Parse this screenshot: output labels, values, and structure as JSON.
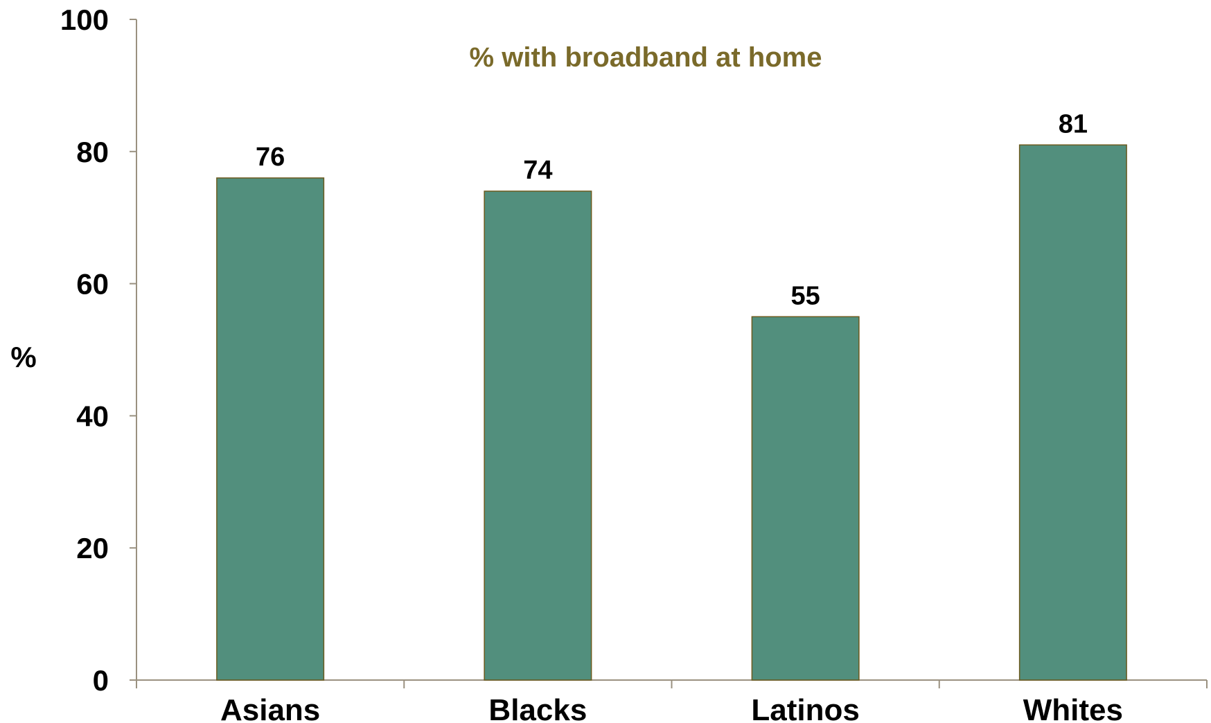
{
  "chart_data": {
    "type": "bar",
    "title": "% with broadband at home",
    "ylabel": "%",
    "xlabel": "",
    "categories": [
      "Asians",
      "Blacks",
      "Latinos",
      "Whites"
    ],
    "values": [
      76,
      74,
      55,
      81
    ],
    "data_labels": [
      "76",
      "74",
      "55",
      "81"
    ],
    "ylim": [
      0,
      100
    ],
    "yticks": [
      0,
      20,
      40,
      60,
      80,
      100
    ],
    "ytick_labels": [
      "0",
      "20",
      "40",
      "60",
      "80",
      "100"
    ],
    "grid": false,
    "legend": "none",
    "colors": {
      "bar_fill": "#528f7d",
      "bar_stroke": "#6b5a1e",
      "axis": "#9a9180",
      "title": "#7a6a2a"
    }
  }
}
